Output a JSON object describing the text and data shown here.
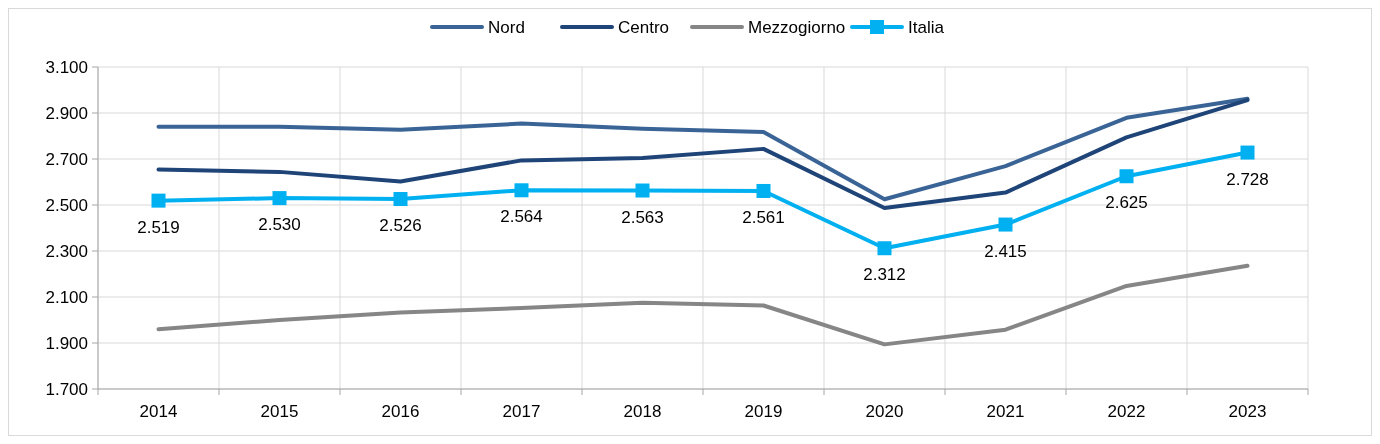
{
  "chart_data": {
    "type": "line",
    "categories": [
      "2014",
      "2015",
      "2016",
      "2017",
      "2018",
      "2019",
      "2020",
      "2021",
      "2022",
      "2023"
    ],
    "ylim": [
      1700,
      3100
    ],
    "yticks": [
      {
        "value": 1700,
        "label": "1.700"
      },
      {
        "value": 1900,
        "label": "1.900"
      },
      {
        "value": 2100,
        "label": "2.100"
      },
      {
        "value": 2300,
        "label": "2.300"
      },
      {
        "value": 2500,
        "label": "2.500"
      },
      {
        "value": 2700,
        "label": "2.700"
      },
      {
        "value": 2900,
        "label": "2.900"
      },
      {
        "value": 3100,
        "label": "3.100"
      }
    ],
    "grid": true,
    "legend": "top",
    "series": [
      {
        "name": "Nord",
        "color": "#3a6496",
        "marker": "none",
        "values": [
          2840,
          2840,
          2827,
          2854,
          2831,
          2817,
          2525,
          2669,
          2879,
          2962
        ]
      },
      {
        "name": "Centro",
        "color": "#1f4477",
        "marker": "none",
        "values": [
          2654,
          2644,
          2602,
          2694,
          2704,
          2744,
          2487,
          2554,
          2794,
          2956
        ]
      },
      {
        "name": "Mezzogiorno",
        "color": "#868686",
        "marker": "none",
        "values": [
          1960,
          2000,
          2033,
          2052,
          2075,
          2063,
          1894,
          1958,
          2148,
          2236
        ]
      },
      {
        "name": "Italia",
        "color": "#00b0f0",
        "marker": "square",
        "values": [
          2519,
          2530,
          2526,
          2564,
          2563,
          2561,
          2312,
          2415,
          2625,
          2728
        ],
        "value_labels": [
          "2.519",
          "2.530",
          "2.526",
          "2.564",
          "2.563",
          "2.561",
          "2.312",
          "2.415",
          "2.625",
          "2.728"
        ]
      }
    ]
  }
}
